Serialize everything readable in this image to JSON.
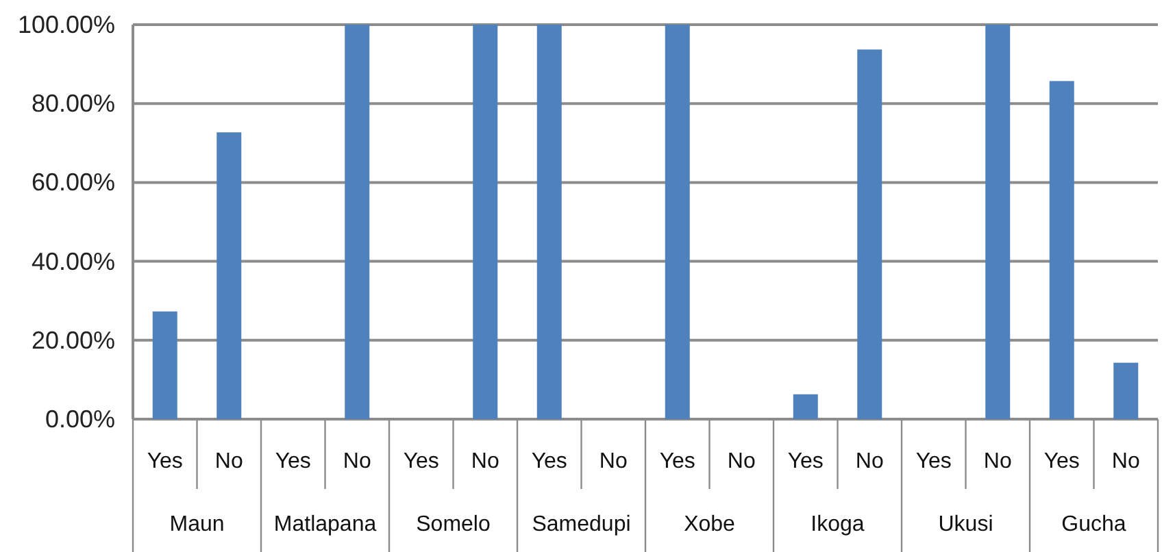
{
  "chart_data": {
    "type": "bar",
    "categories": [
      "Maun",
      "Matlapana",
      "Somelo",
      "Samedupi",
      "Xobe",
      "Ikoga",
      "Ukusi",
      "Gucha"
    ],
    "series": [
      {
        "name": "Yes",
        "color": "#4f81bd",
        "values": [
          27.3,
          0,
          0,
          100,
          100,
          6.3,
          0,
          85.7
        ]
      },
      {
        "name": "No",
        "color": "#4f81bd",
        "values": [
          72.7,
          100,
          100,
          0,
          0,
          93.7,
          100,
          14.3
        ]
      }
    ],
    "ylim": [
      0,
      100
    ],
    "yticks": [
      {
        "value": 0,
        "label": "0.00%"
      },
      {
        "value": 20,
        "label": "20.00%"
      },
      {
        "value": 40,
        "label": "40.00%"
      },
      {
        "value": 60,
        "label": "60.00%"
      },
      {
        "value": 80,
        "label": "80.00%"
      },
      {
        "value": 100,
        "label": "100.00%"
      }
    ],
    "grid": "y"
  }
}
